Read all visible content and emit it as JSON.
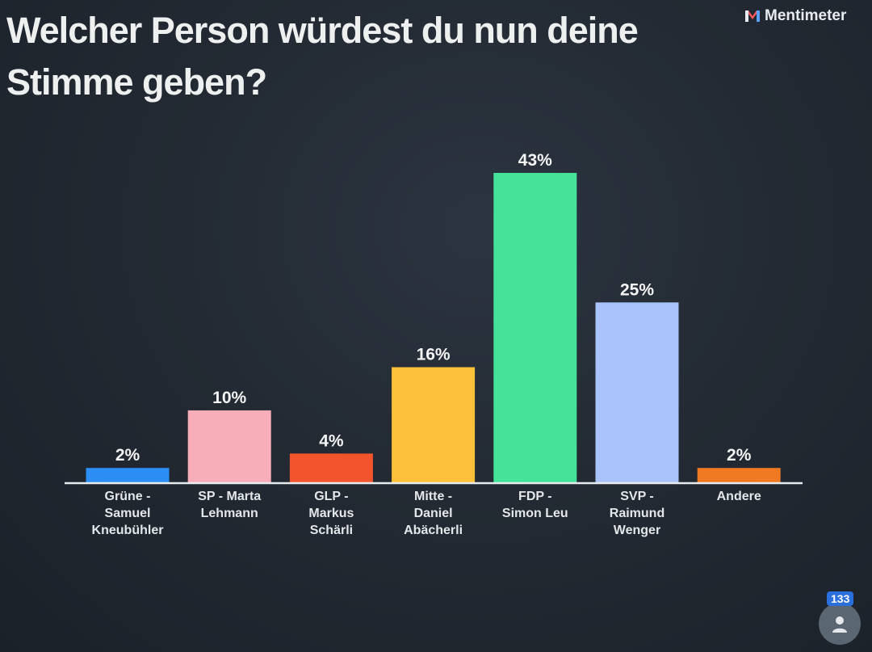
{
  "title": "Welcher Person würdest du nun deine Stimme geben?",
  "brand": {
    "name": "Mentimeter",
    "icon": "mentimeter-logo-icon"
  },
  "participants": {
    "count": "133",
    "icon": "user-icon"
  },
  "chart_data": {
    "type": "bar",
    "title": "Welcher Person würdest du nun deine Stimme geben?",
    "xlabel": "",
    "ylabel": "",
    "ylim": [
      0,
      43
    ],
    "grid": false,
    "categories": [
      [
        "Grüne -",
        "Samuel",
        "Kneubühler"
      ],
      [
        "SP - Marta",
        "Lehmann"
      ],
      [
        "GLP -",
        "Markus",
        "Schärli"
      ],
      [
        "Mitte -",
        "Daniel",
        "Abächerli"
      ],
      [
        "FDP -",
        "Simon Leu"
      ],
      [
        "SVP -",
        "Raimund",
        "Wenger"
      ],
      [
        "Andere"
      ]
    ],
    "values": [
      2,
      10,
      4,
      16,
      43,
      25,
      2
    ],
    "value_labels": [
      "2%",
      "10%",
      "4%",
      "16%",
      "43%",
      "25%",
      "2%"
    ],
    "colors": [
      "#2b8ef5",
      "#f7aeb8",
      "#f2542d",
      "#fdc23a",
      "#45e39a",
      "#a9c4fb",
      "#f07a22"
    ]
  }
}
